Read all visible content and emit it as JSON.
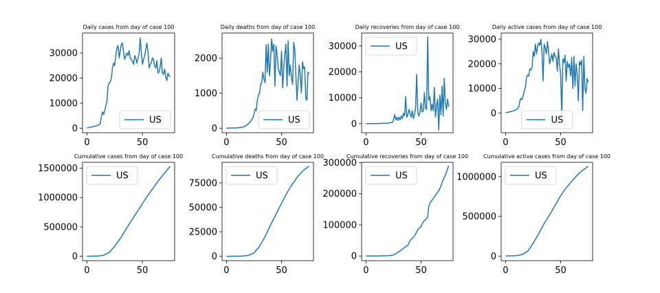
{
  "series_color": "#1f77b4",
  "chart_data": [
    {
      "type": "line",
      "title": "Daily cases from day of case 100",
      "xlim": [
        -4,
        79
      ],
      "ylim": [
        -1800,
        38000
      ],
      "xticks": [
        0,
        50
      ],
      "xtick_labels": [
        "0",
        "50"
      ],
      "yticks": [
        0,
        10000,
        20000,
        30000
      ],
      "ytick_labels": [
        "0",
        "10000",
        "20000",
        "30000"
      ],
      "legend_loc": "lower right",
      "series": [
        {
          "name": "US",
          "x": [
            0,
            2,
            4,
            6,
            8,
            10,
            12,
            13,
            14,
            15,
            16,
            17,
            18,
            19,
            20,
            21,
            22,
            23,
            24,
            25,
            26,
            27,
            28,
            29,
            30,
            31,
            32,
            33,
            34,
            35,
            36,
            37,
            38,
            39,
            40,
            41,
            42,
            43,
            44,
            45,
            46,
            47,
            48,
            49,
            50,
            51,
            52,
            53,
            54,
            55,
            56,
            57,
            58,
            59,
            60,
            61,
            62,
            63,
            64,
            65,
            66,
            67,
            68,
            69,
            70,
            71,
            72,
            73,
            74,
            75
          ],
          "y": [
            150,
            300,
            500,
            700,
            900,
            1200,
            1700,
            4500,
            6500,
            5500,
            7000,
            9000,
            10500,
            17000,
            18000,
            18500,
            20000,
            24000,
            26000,
            25000,
            29000,
            32000,
            33000,
            28000,
            31000,
            33500,
            34000,
            30500,
            27500,
            29000,
            30000,
            29000,
            31000,
            28000,
            27500,
            26500,
            25500,
            29000,
            28000,
            26000,
            28000,
            29500,
            36000,
            30000,
            25500,
            27500,
            29000,
            31500,
            34000,
            30500,
            24000,
            25500,
            26000,
            28000,
            27500,
            25000,
            24000,
            27000,
            22000,
            22500,
            24500,
            28000,
            22000,
            21500,
            23500,
            20500,
            19000,
            22000,
            21000,
            20500
          ]
        }
      ]
    },
    {
      "type": "line",
      "title": "Daily deaths from day of case 100",
      "xlim": [
        -4,
        79
      ],
      "ylim": [
        -130,
        2720
      ],
      "xticks": [
        0,
        50
      ],
      "xtick_labels": [
        "0",
        "50"
      ],
      "yticks": [
        0,
        1000,
        2000
      ],
      "ytick_labels": [
        "0",
        "1000",
        "2000"
      ],
      "legend_loc": "lower right",
      "series": [
        {
          "name": "US",
          "x": [
            0,
            5,
            10,
            15,
            18,
            20,
            22,
            24,
            25,
            26,
            27,
            28,
            29,
            30,
            31,
            32,
            33,
            34,
            35,
            36,
            37,
            38,
            39,
            40,
            41,
            42,
            43,
            44,
            45,
            46,
            47,
            48,
            49,
            50,
            51,
            52,
            53,
            54,
            55,
            56,
            57,
            58,
            59,
            60,
            61,
            62,
            63,
            64,
            65,
            66,
            67,
            68,
            69,
            70,
            71,
            72,
            73,
            74,
            75
          ],
          "y": [
            0,
            5,
            10,
            30,
            80,
            130,
            200,
            300,
            400,
            550,
            500,
            800,
            950,
            1000,
            1250,
            1300,
            1600,
            1400,
            1300,
            2380,
            1600,
            2400,
            1500,
            1900,
            2550,
            2200,
            2400,
            1200,
            2350,
            2100,
            1700,
            1600,
            1500,
            2200,
            1150,
            1700,
            2100,
            2400,
            1200,
            2500,
            1500,
            1800,
            1450,
            1250,
            2450,
            2250,
            1500,
            800,
            1350,
            1800,
            1500,
            1000,
            1900,
            1700,
            1750,
            850,
            800,
            1600,
            1550
          ]
        }
      ]
    },
    {
      "type": "line",
      "title": "Daily recoveries from day of case 100",
      "xlim": [
        -4,
        79
      ],
      "ylim": [
        -3500,
        35000
      ],
      "xticks": [
        0,
        50
      ],
      "xtick_labels": [
        "0",
        "50"
      ],
      "yticks": [
        0,
        10000,
        20000,
        30000
      ],
      "ytick_labels": [
        "0",
        "10000",
        "20000",
        "30000"
      ],
      "legend_loc": "upper left",
      "series": [
        {
          "name": "US",
          "x": [
            0,
            5,
            10,
            15,
            20,
            24,
            25,
            26,
            27,
            28,
            29,
            30,
            31,
            32,
            33,
            34,
            35,
            36,
            37,
            38,
            39,
            40,
            41,
            42,
            43,
            44,
            45,
            46,
            47,
            48,
            49,
            50,
            51,
            52,
            53,
            54,
            55,
            56,
            57,
            58,
            59,
            60,
            61,
            62,
            63,
            64,
            65,
            66,
            67,
            68,
            69,
            70,
            71,
            72,
            73,
            74,
            75
          ],
          "y": [
            0,
            0,
            50,
            100,
            200,
            500,
            1500,
            3500,
            1500,
            2500,
            1200,
            2500,
            1500,
            3000,
            2000,
            4000,
            3000,
            10500,
            2500,
            3500,
            5500,
            4000,
            2500,
            5000,
            2000,
            3500,
            6000,
            19000,
            4500,
            3000,
            4500,
            8000,
            4500,
            5000,
            12000,
            6000,
            5500,
            33500,
            9000,
            10500,
            5000,
            7500,
            5000,
            14000,
            2500,
            7000,
            9500,
            -2500,
            11000,
            3500,
            14500,
            3000,
            17500,
            8000,
            5500,
            9500,
            6500
          ]
        }
      ]
    },
    {
      "type": "line",
      "title": "Daily active cases from day of case 100",
      "xlim": [
        -4,
        79
      ],
      "ylim": [
        -8000,
        32500
      ],
      "xticks": [
        0,
        50
      ],
      "xtick_labels": [
        "0",
        "50"
      ],
      "yticks": [
        0,
        10000,
        20000,
        30000
      ],
      "ytick_labels": [
        "0",
        "10000",
        "20000",
        "30000"
      ],
      "legend_loc": "lower center",
      "series": [
        {
          "name": "US",
          "x": [
            0,
            2,
            4,
            6,
            8,
            10,
            12,
            13,
            14,
            15,
            16,
            17,
            18,
            19,
            20,
            21,
            22,
            23,
            24,
            25,
            26,
            27,
            28,
            29,
            30,
            31,
            32,
            33,
            34,
            35,
            36,
            37,
            38,
            39,
            40,
            41,
            42,
            43,
            44,
            45,
            46,
            47,
            48,
            49,
            50,
            51,
            52,
            53,
            54,
            55,
            56,
            57,
            58,
            59,
            60,
            61,
            62,
            63,
            64,
            65,
            66,
            67,
            68,
            69,
            70,
            71,
            72,
            73,
            74,
            75
          ],
          "y": [
            150,
            300,
            500,
            800,
            1000,
            1500,
            2500,
            5000,
            6000,
            5500,
            7000,
            9000,
            10500,
            14500,
            15500,
            15000,
            18000,
            17500,
            18500,
            25000,
            23000,
            28000,
            24000,
            27000,
            28500,
            27500,
            30000,
            25000,
            13000,
            28000,
            26500,
            24000,
            29000,
            25000,
            20000,
            22000,
            24000,
            21000,
            24500,
            23000,
            22500,
            17000,
            26000,
            20000,
            15500,
            -1500,
            22000,
            20500,
            23500,
            13000,
            21000,
            18500,
            20000,
            15000,
            22500,
            10000,
            23000,
            11000,
            20000,
            15500,
            5000,
            21000,
            19500,
            21500,
            1000,
            23000,
            10000,
            8000,
            14000,
            12500
          ]
        }
      ]
    },
    {
      "type": "line",
      "title": "Cumulative cases from day of case 100",
      "xlim": [
        -4,
        79
      ],
      "ylim": [
        -75000,
        1600000
      ],
      "xticks": [
        0,
        50
      ],
      "xtick_labels": [
        "0",
        "50"
      ],
      "yticks": [
        0,
        500000,
        1000000,
        1500000
      ],
      "ytick_labels": [
        "0",
        "500000",
        "1000000",
        "1500000"
      ],
      "legend_loc": "upper left",
      "series": [
        {
          "name": "US",
          "x": [
            0,
            10,
            15,
            20,
            25,
            30,
            35,
            40,
            45,
            50,
            55,
            60,
            65,
            70,
            75
          ],
          "y": [
            0,
            5000,
            18000,
            63000,
            170000,
            300000,
            455000,
            605000,
            750000,
            900000,
            1040000,
            1170000,
            1300000,
            1420000,
            1530000
          ]
        }
      ]
    },
    {
      "type": "line",
      "title": "Cumulative deaths from day of case 100",
      "xlim": [
        -4,
        79
      ],
      "ylim": [
        -4500,
        96000
      ],
      "xticks": [
        0,
        50
      ],
      "xtick_labels": [
        "0",
        "50"
      ],
      "yticks": [
        0,
        25000,
        50000,
        75000
      ],
      "ytick_labels": [
        "0",
        "25000",
        "50000",
        "75000"
      ],
      "legend_loc": "upper left",
      "series": [
        {
          "name": "US",
          "x": [
            0,
            10,
            15,
            20,
            25,
            30,
            35,
            40,
            45,
            50,
            55,
            60,
            65,
            70,
            75
          ],
          "y": [
            0,
            50,
            200,
            900,
            3500,
            10000,
            20000,
            32000,
            43000,
            54000,
            65000,
            74000,
            82000,
            88000,
            92000
          ]
        }
      ]
    },
    {
      "type": "line",
      "title": "Cumulative recoveries from day of case 100",
      "xlim": [
        -4,
        79
      ],
      "ylim": [
        -15000,
        301000
      ],
      "xticks": [
        0,
        50
      ],
      "xtick_labels": [
        "0",
        "50"
      ],
      "yticks": [
        0,
        100000,
        200000,
        300000
      ],
      "ytick_labels": [
        "0",
        "100000",
        "200000",
        "300000"
      ],
      "legend_loc": "upper left",
      "series": [
        {
          "name": "US",
          "x": [
            0,
            10,
            20,
            25,
            28,
            30,
            33,
            36,
            38,
            40,
            43,
            45,
            47,
            50,
            52,
            54,
            56,
            57,
            58,
            60,
            62,
            64,
            66,
            68,
            70,
            72,
            74,
            75
          ],
          "y": [
            0,
            300,
            1000,
            3000,
            10000,
            14000,
            22000,
            30000,
            35000,
            50000,
            60000,
            70000,
            85000,
            95000,
            110000,
            117000,
            125000,
            160000,
            170000,
            180000,
            190000,
            200000,
            210000,
            225000,
            245000,
            260000,
            280000,
            290000
          ]
        }
      ]
    },
    {
      "type": "line",
      "title": "Cumulative active cases from day of case 100",
      "xlim": [
        -4,
        79
      ],
      "ylim": [
        -58000,
        1180000
      ],
      "xticks": [
        0,
        50
      ],
      "xtick_labels": [
        "0",
        "50"
      ],
      "yticks": [
        0,
        500000,
        1000000
      ],
      "ytick_labels": [
        "0",
        "500000",
        "1000000"
      ],
      "legend_loc": "upper left",
      "series": [
        {
          "name": "US",
          "x": [
            0,
            10,
            15,
            20,
            25,
            30,
            35,
            40,
            45,
            50,
            55,
            60,
            65,
            70,
            75
          ],
          "y": [
            0,
            5000,
            18000,
            60000,
            160000,
            280000,
            410000,
            520000,
            640000,
            760000,
            860000,
            940000,
            1020000,
            1080000,
            1130000
          ]
        }
      ]
    }
  ]
}
